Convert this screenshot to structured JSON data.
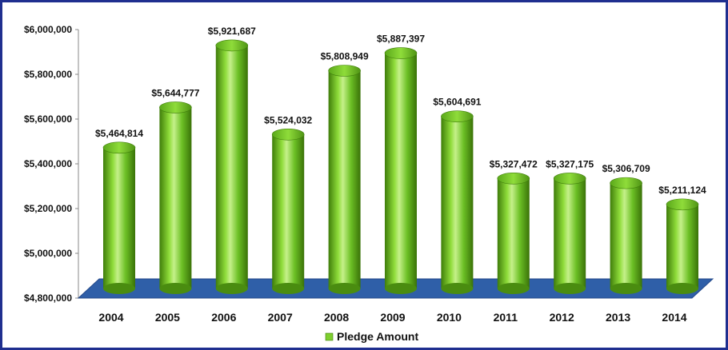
{
  "chart_data": {
    "type": "bar",
    "categories": [
      "2004",
      "2005",
      "2006",
      "2007",
      "2008",
      "2009",
      "2010",
      "2011",
      "2012",
      "2013",
      "2014"
    ],
    "series": [
      {
        "name": "Pledge Amount",
        "values": [
          5464814,
          5644777,
          5921687,
          5524032,
          5808949,
          5887397,
          5604691,
          5327472,
          5327175,
          5306709,
          5211124
        ],
        "labels": [
          "$5,464,814",
          "$5,644,777",
          "$5,921,687",
          "$5,524,032",
          "$5,808,949",
          "$5,887,397",
          "$5,604,691",
          "$5,327,472",
          "$5,327,175",
          "$5,306,709",
          "$5,211,124"
        ]
      }
    ],
    "yticks": [
      "$4,800,000",
      "$5,000,000",
      "$5,200,000",
      "$5,400,000",
      "$5,600,000",
      "$5,800,000",
      "$6,000,000"
    ],
    "ylim": [
      4800000,
      6000000
    ],
    "legend_position": "bottom",
    "grid": false,
    "style": "3d-cylinder",
    "colors": {
      "bar": "#7ecf2e",
      "bar_dark": "#3f7d0a",
      "bar_light": "#c5f08a",
      "floor": "#2f5fa8",
      "frame": "#1f2f8f"
    }
  }
}
